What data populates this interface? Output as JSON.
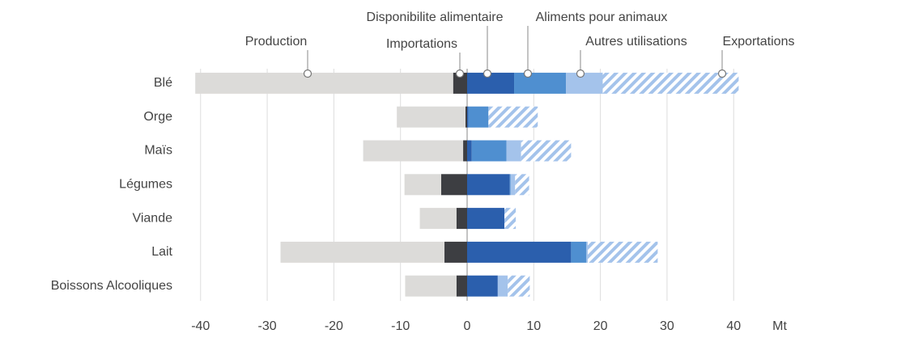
{
  "chart_data": {
    "type": "diverging-stacked-barh",
    "categories": [
      "Blé",
      "Orge",
      "Maïs",
      "Légumes",
      "Viande",
      "Lait",
      "Boissons Alcooliques"
    ],
    "series": [
      {
        "name": "Production",
        "color": "#dcdbd9",
        "values": [
          -38.7,
          -10.3,
          -15.0,
          -5.5,
          -5.5,
          -24.6,
          -7.7
        ]
      },
      {
        "name": "Importations",
        "color": "#3d3e42",
        "values": [
          -2.1,
          -0.25,
          -0.6,
          -3.9,
          -1.6,
          -3.4,
          -1.6
        ]
      },
      {
        "name": "Disponibilite alimentaire",
        "color": "#2b5fad",
        "values": [
          7.05,
          0.2,
          0.7,
          6.4,
          5.6,
          15.6,
          4.6
        ]
      },
      {
        "name": "Aliments pour animaux",
        "color": "#4f8fd0",
        "values": [
          7.8,
          3.0,
          5.2,
          0.1,
          0,
          2.3,
          0
        ]
      },
      {
        "name": "Autres utilisations",
        "color": "#a4c3eb",
        "values": [
          5.5,
          0,
          2.2,
          0.7,
          0,
          0.2,
          1.5
        ]
      },
      {
        "name": "Exportations",
        "color": "#a4c3eb",
        "hatch": true,
        "values": [
          20.4,
          7.4,
          7.5,
          2.1,
          1.7,
          10.5,
          3.3
        ]
      }
    ],
    "xlim": [
      -40.7,
      40.7
    ],
    "xticks": [
      -40,
      -30,
      -20,
      -10,
      0,
      10,
      20,
      30,
      40
    ],
    "xlabel": "Mt",
    "grid": true
  }
}
